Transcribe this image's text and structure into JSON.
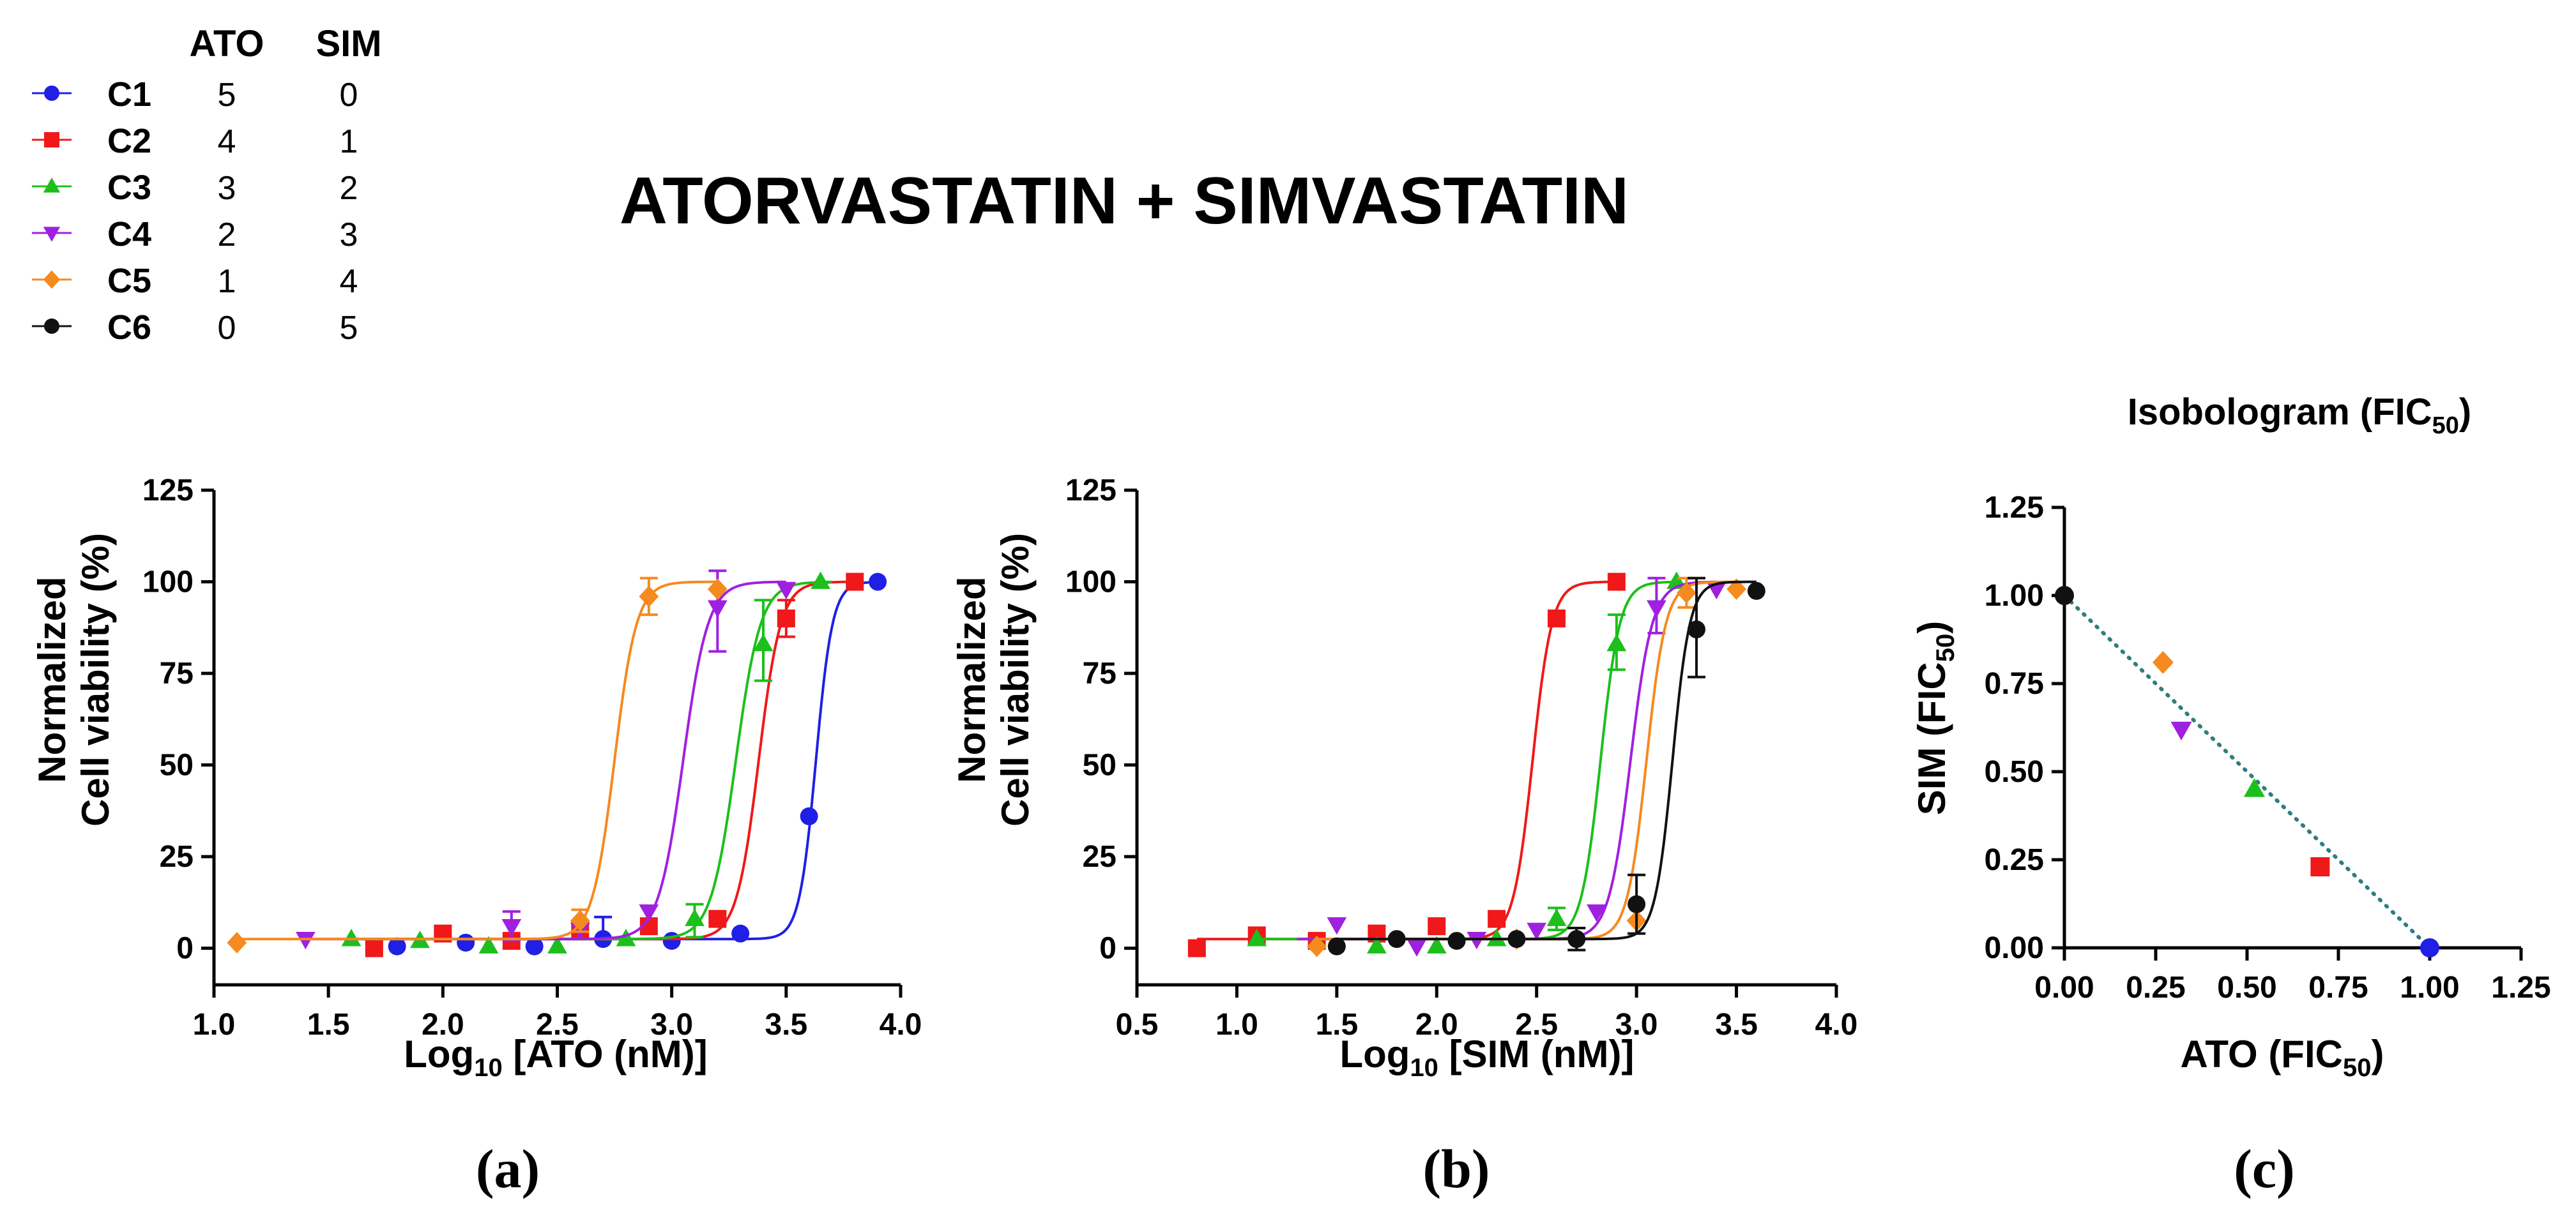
{
  "figure_title": "ATORVASTATIN + SIMVASTATIN",
  "legend": {
    "headers": [
      "ATO",
      "SIM"
    ],
    "rows": [
      {
        "name": "C1",
        "ato": "5",
        "sim": "0",
        "color": "#1f1fe6",
        "marker": "circle"
      },
      {
        "name": "C2",
        "ato": "4",
        "sim": "1",
        "color": "#f01818",
        "marker": "square"
      },
      {
        "name": "C3",
        "ato": "3",
        "sim": "2",
        "color": "#1cbf1c",
        "marker": "triangle-up"
      },
      {
        "name": "C4",
        "ato": "2",
        "sim": "3",
        "color": "#a020e0",
        "marker": "triangle-down"
      },
      {
        "name": "C5",
        "ato": "1",
        "sim": "4",
        "color": "#f58a1e",
        "marker": "diamond"
      },
      {
        "name": "C6",
        "ato": "0",
        "sim": "5",
        "color": "#111111",
        "marker": "circle"
      }
    ]
  },
  "chart_data": [
    {
      "id": "a",
      "panel_label": "(a)",
      "type": "line",
      "title": "",
      "xlabel_pre": "Log",
      "xlabel_sub": "10",
      "xlabel_post": " [ATO (nM)]",
      "ylabel_lines": [
        "Normalized",
        "Cell viability  (%)"
      ],
      "xlim": [
        1.0,
        4.0
      ],
      "ylim": [
        -10,
        125
      ],
      "xticks": [
        1.0,
        1.5,
        2.0,
        2.5,
        3.0,
        3.5,
        4.0
      ],
      "xtick_labels": [
        "1.0",
        "1.5",
        "2.0",
        "2.5",
        "3.0",
        "3.5",
        "4.0"
      ],
      "yticks": [
        0,
        25,
        50,
        75,
        100,
        125
      ],
      "ytick_labels": [
        "0",
        "25",
        "50",
        "75",
        "100",
        "125"
      ],
      "series": [
        {
          "name": "C1",
          "curve": {
            "bottom": 2.5,
            "top": 100,
            "logec50": 3.63,
            "hill": 12,
            "xmin": 1.8,
            "xmax": 3.9
          },
          "points": [
            [
              1.8,
              0.5
            ],
            [
              2.1,
              1.5
            ],
            [
              2.4,
              0.5
            ],
            [
              2.7,
              2.5
            ],
            [
              3.0,
              2.0
            ],
            [
              3.3,
              4.0
            ],
            [
              3.6,
              36.0
            ],
            [
              3.9,
              100.0
            ]
          ],
          "errors": [
            [
              2.7,
              6,
              0
            ]
          ]
        },
        {
          "name": "C2",
          "curve": {
            "bottom": 2.5,
            "top": 100,
            "logec50": 3.38,
            "hill": 9,
            "xmin": 1.7,
            "xmax": 3.8
          },
          "points": [
            [
              1.7,
              0.0
            ],
            [
              2.0,
              4.0
            ],
            [
              2.3,
              2.0
            ],
            [
              2.6,
              5.0
            ],
            [
              2.9,
              6.0
            ],
            [
              3.2,
              8.0
            ],
            [
              3.5,
              90.0
            ],
            [
              3.8,
              100.0
            ]
          ],
          "errors": [
            [
              3.5,
              5,
              5
            ]
          ]
        },
        {
          "name": "C3",
          "curve": {
            "bottom": 2.5,
            "top": 100,
            "logec50": 3.28,
            "hill": 8,
            "xmin": 1.6,
            "xmax": 3.7
          },
          "points": [
            [
              1.6,
              2.5
            ],
            [
              1.9,
              2.0
            ],
            [
              2.2,
              0.5
            ],
            [
              2.5,
              0.5
            ],
            [
              2.8,
              2.5
            ],
            [
              3.1,
              8.0
            ],
            [
              3.4,
              83.0
            ],
            [
              3.65,
              100.0
            ]
          ],
          "errors": [
            [
              3.4,
              12,
              10
            ],
            [
              3.1,
              4,
              5
            ]
          ]
        },
        {
          "name": "C4",
          "curve": {
            "bottom": 2.5,
            "top": 100,
            "logec50": 3.05,
            "hill": 8,
            "xmin": 1.4,
            "xmax": 3.5
          },
          "points": [
            [
              1.4,
              2.5
            ],
            [
              2.3,
              6.0
            ],
            [
              2.6,
              5.0
            ],
            [
              2.9,
              10.0
            ],
            [
              3.2,
              93.0
            ],
            [
              3.5,
              98.0
            ]
          ],
          "errors": [
            [
              3.2,
              10,
              12
            ],
            [
              2.3,
              4,
              4
            ]
          ]
        },
        {
          "name": "C5",
          "curve": {
            "bottom": 2.5,
            "top": 100,
            "logec50": 2.75,
            "hill": 9,
            "xmin": 1.1,
            "xmax": 3.2
          },
          "points": [
            [
              1.1,
              1.5
            ],
            [
              2.6,
              7.5
            ],
            [
              2.9,
              96.0
            ],
            [
              3.2,
              98.0
            ]
          ],
          "errors": [
            [
              2.9,
              5,
              5
            ],
            [
              2.6,
              3,
              3
            ]
          ]
        }
      ]
    },
    {
      "id": "b",
      "panel_label": "(b)",
      "type": "line",
      "title": "",
      "xlabel_pre": "Log",
      "xlabel_sub": "10",
      "xlabel_post": " [SIM (nM)]",
      "ylabel_lines": [
        "Normalized",
        "Cell viability  (%)"
      ],
      "xlim": [
        0.5,
        4.0
      ],
      "ylim": [
        -10,
        125
      ],
      "xticks": [
        0.5,
        1.0,
        1.5,
        2.0,
        2.5,
        3.0,
        3.5,
        4.0
      ],
      "xtick_labels": [
        "0.5",
        "1.0",
        "1.5",
        "2.0",
        "2.5",
        "3.0",
        "3.5",
        "4.0"
      ],
      "yticks": [
        0,
        25,
        50,
        75,
        100,
        125
      ],
      "ytick_labels": [
        "0",
        "25",
        "50",
        "75",
        "100",
        "125"
      ],
      "series": [
        {
          "name": "C2",
          "curve": {
            "bottom": 2.5,
            "top": 100,
            "logec50": 2.48,
            "hill": 9,
            "xmin": 0.8,
            "xmax": 2.9
          },
          "points": [
            [
              0.8,
              0.0
            ],
            [
              1.1,
              3.5
            ],
            [
              1.4,
              2.0
            ],
            [
              1.7,
              4.0
            ],
            [
              2.0,
              6.0
            ],
            [
              2.3,
              8.0
            ],
            [
              2.6,
              90.0
            ],
            [
              2.9,
              100.0
            ]
          ],
          "errors": []
        },
        {
          "name": "C3",
          "curve": {
            "bottom": 2.5,
            "top": 100,
            "logec50": 2.82,
            "hill": 9,
            "xmin": 1.1,
            "xmax": 3.2
          },
          "points": [
            [
              1.1,
              2.5
            ],
            [
              1.7,
              0.5
            ],
            [
              2.0,
              0.5
            ],
            [
              2.3,
              2.5
            ],
            [
              2.6,
              8.0
            ],
            [
              2.9,
              83.0
            ],
            [
              3.2,
              100.0
            ]
          ],
          "errors": [
            [
              2.9,
              8,
              7
            ],
            [
              2.6,
              3,
              3
            ]
          ]
        },
        {
          "name": "C4",
          "curve": {
            "bottom": 2.5,
            "top": 100,
            "logec50": 2.97,
            "hill": 8,
            "xmin": 1.3,
            "xmax": 3.4
          },
          "points": [
            [
              1.5,
              6.5
            ],
            [
              1.9,
              0.5
            ],
            [
              2.2,
              2.5
            ],
            [
              2.5,
              5.0
            ],
            [
              2.8,
              10.0
            ],
            [
              3.1,
              93.0
            ],
            [
              3.4,
              98.0
            ]
          ],
          "errors": [
            [
              3.1,
              8,
              7
            ]
          ]
        },
        {
          "name": "C5",
          "curve": {
            "bottom": 2.5,
            "top": 100,
            "logec50": 3.05,
            "hill": 9,
            "xmin": 1.4,
            "xmax": 3.5
          },
          "points": [
            [
              1.4,
              0.5
            ],
            [
              2.4,
              2.5
            ],
            [
              2.7,
              2.5
            ],
            [
              3.0,
              7.5
            ],
            [
              3.25,
              97.0
            ],
            [
              3.5,
              98.0
            ]
          ],
          "errors": [
            [
              3.25,
              4,
              4
            ]
          ]
        },
        {
          "name": "C6",
          "curve": {
            "bottom": 2.5,
            "top": 100,
            "logec50": 3.18,
            "hill": 10,
            "xmin": 1.5,
            "xmax": 3.6
          },
          "points": [
            [
              1.5,
              0.5
            ],
            [
              1.8,
              2.5
            ],
            [
              2.1,
              2.0
            ],
            [
              2.4,
              2.5
            ],
            [
              2.7,
              2.5
            ],
            [
              3.0,
              12.0
            ],
            [
              3.3,
              87.0
            ],
            [
              3.6,
              97.5
            ]
          ],
          "errors": [
            [
              3.3,
              14,
              13
            ],
            [
              3.0,
              8,
              8
            ],
            [
              2.7,
              3,
              3
            ]
          ]
        }
      ]
    },
    {
      "id": "c",
      "panel_label": "(c)",
      "type": "scatter",
      "title_pre": "Isobologram (FIC",
      "title_sub": "50",
      "title_post": ")",
      "xlabel_pre": "ATO (FIC",
      "xlabel_sub": "50",
      "xlabel_post": ")",
      "ylabel_pre": "SIM (FIC",
      "ylabel_sub": "50",
      "ylabel_post": ")",
      "xlim": [
        0,
        1.25
      ],
      "ylim": [
        0,
        1.25
      ],
      "xticks": [
        0,
        0.25,
        0.5,
        0.75,
        1.0,
        1.25
      ],
      "xtick_labels": [
        "0.00",
        "0.25",
        "0.50",
        "0.75",
        "1.00",
        "1.25"
      ],
      "yticks": [
        0,
        0.25,
        0.5,
        0.75,
        1.0,
        1.25
      ],
      "ytick_labels": [
        "0.00",
        "0.25",
        "0.50",
        "0.75",
        "1.00",
        "1.25"
      ],
      "line_of_additivity": [
        [
          0,
          1.0
        ],
        [
          1.0,
          0
        ]
      ],
      "points": [
        {
          "name": "C6",
          "x": 0.0,
          "y": 1.0
        },
        {
          "name": "C5",
          "x": 0.27,
          "y": 0.81
        },
        {
          "name": "C4",
          "x": 0.32,
          "y": 0.62
        },
        {
          "name": "C3",
          "x": 0.52,
          "y": 0.45
        },
        {
          "name": "C2",
          "x": 0.7,
          "y": 0.23
        },
        {
          "name": "C1",
          "x": 1.0,
          "y": 0.0
        }
      ]
    }
  ]
}
